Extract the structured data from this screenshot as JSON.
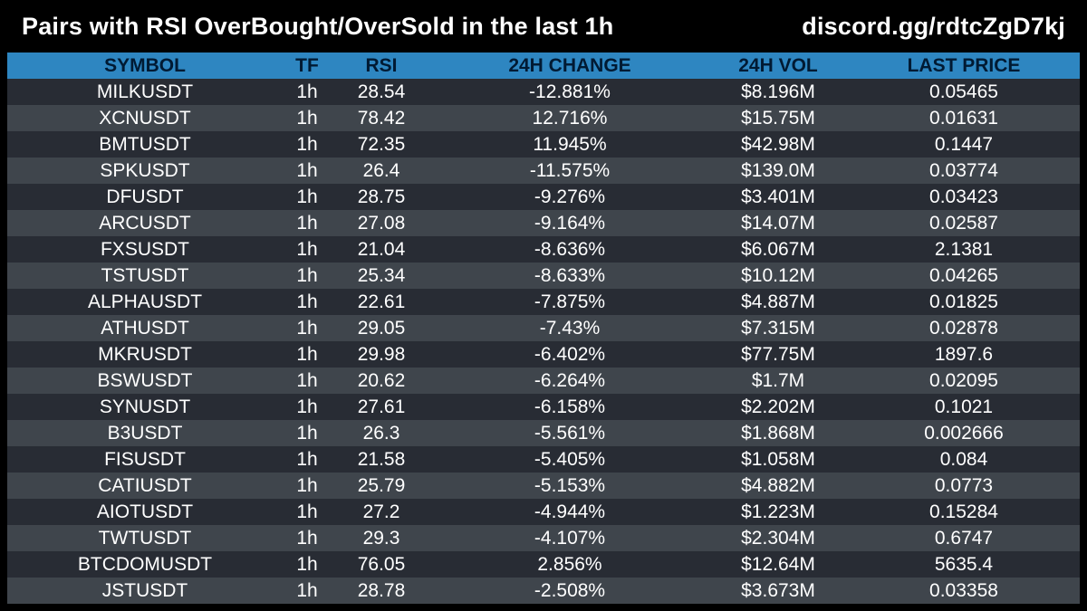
{
  "header": {
    "title": "Pairs with RSI OverBought/OverSold in the last 1h",
    "link": "discord.gg/rdtcZgD7kj"
  },
  "table": {
    "columns": [
      "SYMBOL",
      "TF",
      "RSI",
      "24H CHANGE",
      "24H VOL",
      "LAST PRICE"
    ],
    "rows": [
      [
        "MILKUSDT",
        "1h",
        "28.54",
        "-12.881%",
        "$8.196M",
        "0.05465"
      ],
      [
        "XCNUSDT",
        "1h",
        "78.42",
        "12.716%",
        "$15.75M",
        "0.01631"
      ],
      [
        "BMTUSDT",
        "1h",
        "72.35",
        "11.945%",
        "$42.98M",
        "0.1447"
      ],
      [
        "SPKUSDT",
        "1h",
        "26.4",
        "-11.575%",
        "$139.0M",
        "0.03774"
      ],
      [
        "DFUSDT",
        "1h",
        "28.75",
        "-9.276%",
        "$3.401M",
        "0.03423"
      ],
      [
        "ARCUSDT",
        "1h",
        "27.08",
        "-9.164%",
        "$14.07M",
        "0.02587"
      ],
      [
        "FXSUSDT",
        "1h",
        "21.04",
        "-8.636%",
        "$6.067M",
        "2.1381"
      ],
      [
        "TSTUSDT",
        "1h",
        "25.34",
        "-8.633%",
        "$10.12M",
        "0.04265"
      ],
      [
        "ALPHAUSDT",
        "1h",
        "22.61",
        "-7.875%",
        "$4.887M",
        "0.01825"
      ],
      [
        "ATHUSDT",
        "1h",
        "29.05",
        "-7.43%",
        "$7.315M",
        "0.02878"
      ],
      [
        "MKRUSDT",
        "1h",
        "29.98",
        "-6.402%",
        "$77.75M",
        "1897.6"
      ],
      [
        "BSWUSDT",
        "1h",
        "20.62",
        "-6.264%",
        "$1.7M",
        "0.02095"
      ],
      [
        "SYNUSDT",
        "1h",
        "27.61",
        "-6.158%",
        "$2.202M",
        "0.1021"
      ],
      [
        "B3USDT",
        "1h",
        "26.3",
        "-5.561%",
        "$1.868M",
        "0.002666"
      ],
      [
        "FISUSDT",
        "1h",
        "21.58",
        "-5.405%",
        "$1.058M",
        "0.084"
      ],
      [
        "CATIUSDT",
        "1h",
        "25.79",
        "-5.153%",
        "$4.882M",
        "0.0773"
      ],
      [
        "AIOTUSDT",
        "1h",
        "27.2",
        "-4.944%",
        "$1.223M",
        "0.15284"
      ],
      [
        "TWTUSDT",
        "1h",
        "29.3",
        "-4.107%",
        "$2.304M",
        "0.6747"
      ],
      [
        "BTCDOMUSDT",
        "1h",
        "76.05",
        "2.856%",
        "$12.64M",
        "5635.4"
      ],
      [
        "JSTUSDT",
        "1h",
        "28.78",
        "-2.508%",
        "$3.673M",
        "0.03358"
      ]
    ]
  },
  "colors": {
    "background": "#000000",
    "header_row": "#2e86c1",
    "header_text": "#001a33",
    "row_dark": "#282c34",
    "row_light": "#3f454c",
    "text": "#ffffff"
  }
}
